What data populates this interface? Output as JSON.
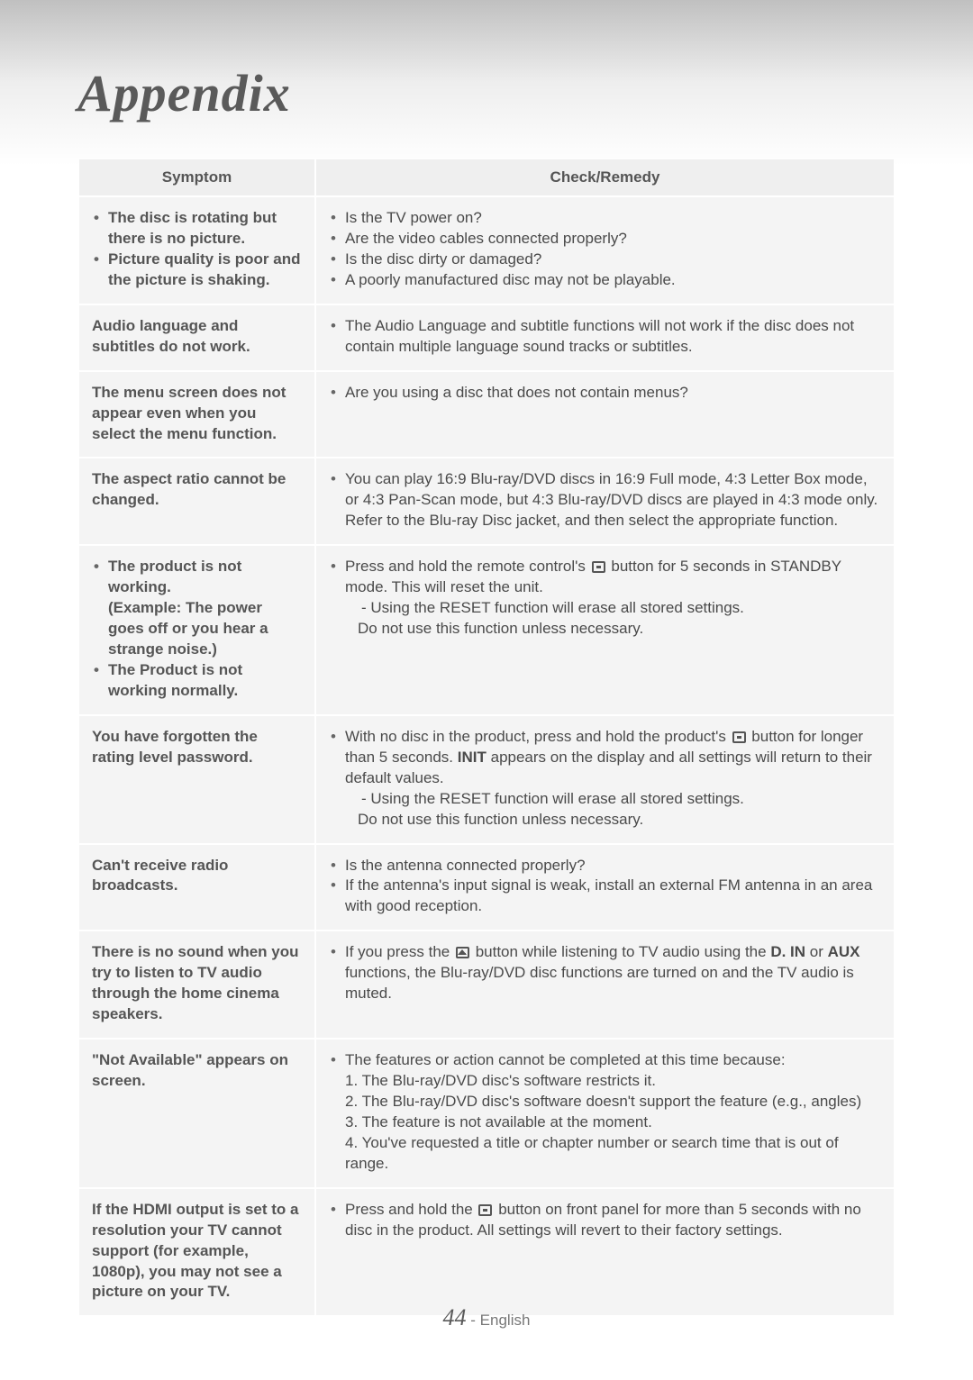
{
  "title": "Appendix",
  "header": {
    "symptom": "Symptom",
    "remedy": "Check/Remedy"
  },
  "rows": [
    {
      "symptom_bullets": [
        "The disc is rotating but there is no picture.",
        "Picture quality is poor and the picture is shaking."
      ],
      "remedy_bullets": [
        "Is the TV power on?",
        "Are the video cables connected properly?",
        "Is the disc dirty or damaged?",
        "A poorly manufactured disc may not be playable."
      ]
    },
    {
      "symptom_text": "Audio language and subtitles do not work.",
      "remedy_bullets": [
        "The Audio Language and subtitle functions will not work if the disc does not contain multiple language sound tracks or subtitles."
      ]
    },
    {
      "symptom_text": "The menu screen does not appear even when you select the menu function.",
      "remedy_bullets": [
        "Are you using a disc that does not contain menus?"
      ]
    },
    {
      "symptom_text": "The aspect ratio cannot be changed.",
      "remedy_bullets": [
        "You can play 16:9 Blu-ray/DVD discs in 16:9 Full mode, 4:3 Letter Box mode, or 4:3 Pan-Scan mode, but 4:3 Blu-ray/DVD discs are played in 4:3 mode only. Refer to the Blu-ray Disc jacket, and then select the appropriate function."
      ]
    },
    {
      "symptom_bullets": [
        "The product is not working.\n(Example: The power goes off or you hear a strange noise.)",
        "The Product is not working normally."
      ],
      "remedy_reset": {
        "pre": "Press and hold the remote control's ",
        "post": " button for 5 seconds in STANDBY mode. This will reset the unit.",
        "note1": "- Using the RESET function will erase all stored settings.",
        "note2": "Do not use this function unless necessary."
      }
    },
    {
      "symptom_text": "You have forgotten the rating level password.",
      "remedy_init": {
        "pre": "With no disc in the product, press and hold the product's ",
        "mid": " button for longer than 5 seconds. ",
        "bold": "INIT",
        "post": " appears on the display and all settings will return to their default values.",
        "note1": "- Using the RESET function will erase all stored settings.",
        "note2": "Do not use this function unless necessary."
      }
    },
    {
      "symptom_text": "Can't receive radio broadcasts.",
      "remedy_bullets": [
        "Is the antenna connected properly?",
        "If the antenna's input signal is weak, install an external FM antenna in an area with good reception."
      ]
    },
    {
      "symptom_text": "There is no sound when you try to listen to TV audio through the home cinema speakers.",
      "remedy_tvaudio": {
        "pre": "If you press the ",
        "mid": " button while listening to TV audio using the ",
        "b1": "D. IN",
        "or": " or ",
        "b2": "AUX",
        "post": " functions, the Blu-ray/DVD disc functions are turned on and the TV audio is muted."
      }
    },
    {
      "symptom_text": "\"Not Available\" appears on screen.",
      "remedy_na": {
        "lead": "The features or action cannot be completed at this time because:",
        "l1": "1. The Blu-ray/DVD disc's software restricts it.",
        "l2": "2. The Blu-ray/DVD disc's software doesn't support the feature (e.g., angles)",
        "l3": "3. The feature is not available at the moment.",
        "l4": "4. You've requested a title or chapter number or search time that is out of range."
      }
    },
    {
      "symptom_text": "If the HDMI output is set to a resolution your TV cannot support (for example, 1080p), you may not see a picture on your TV.",
      "remedy_hdmi": {
        "pre": "Press and hold the ",
        "post": " button on front panel for more than 5 seconds with no disc in the product. All settings will revert to their factory settings."
      }
    }
  ],
  "page": {
    "number": "44",
    "lang": "English"
  }
}
